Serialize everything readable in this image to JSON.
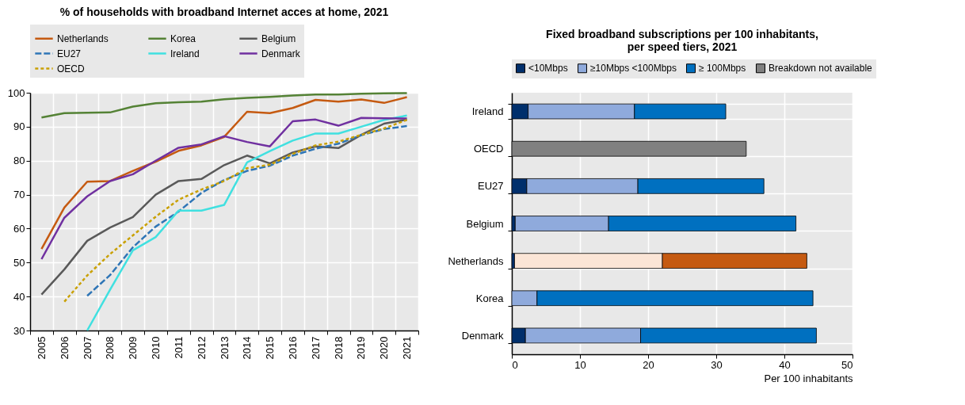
{
  "chart_data": [
    {
      "type": "line",
      "title": "% of households with broadband Internet acces at home, 2021",
      "categories": [
        "2005",
        "2006",
        "2007",
        "2008",
        "2009",
        "2010",
        "2011",
        "2012",
        "2013",
        "2014",
        "2015",
        "2016",
        "2017",
        "2018",
        "2019",
        "2020",
        "2021"
      ],
      "ylim": [
        30,
        100
      ],
      "yticks": [
        30,
        40,
        50,
        60,
        70,
        80,
        90,
        100
      ],
      "grid": true,
      "legend": "top",
      "series": [
        {
          "name": "Netherlands",
          "color": "#c55a11",
          "values": [
            54,
            66.2,
            73.8,
            74,
            77,
            79.7,
            82.9,
            84.5,
            87,
            94.4,
            94,
            95.5,
            97.9,
            97.4,
            98,
            97,
            98.7
          ]
        },
        {
          "name": "Korea",
          "color": "#548235",
          "values": [
            92.7,
            94,
            94.1,
            94.2,
            95.9,
            96.9,
            97.2,
            97.4,
            98.1,
            98.5,
            98.8,
            99.2,
            99.5,
            99.5,
            99.7,
            99.8,
            99.9
          ]
        },
        {
          "name": "Belgium",
          "color": "#595959",
          "values": [
            40.6,
            48,
            56.4,
            60.3,
            63.4,
            70,
            74,
            74.6,
            78.7,
            81.5,
            79.2,
            82.4,
            84.2,
            83.7,
            87.6,
            90.9,
            92.1
          ]
        },
        {
          "name": "EU27",
          "color": "#2e75b6",
          "line_style": "dashed",
          "values": [
            null,
            null,
            40.2,
            46.3,
            54.5,
            60.6,
            65,
            70.5,
            74.3,
            77,
            78.5,
            81.5,
            83.5,
            85,
            87.5,
            89.3,
            90.2
          ]
        },
        {
          "name": "Ireland",
          "color": "#40e0e0",
          "values": [
            null,
            null,
            30,
            42,
            53.6,
            57.5,
            65.3,
            65.3,
            67,
            79.5,
            82.8,
            85.9,
            88,
            88,
            90,
            92,
            93.3
          ]
        },
        {
          "name": "Denmark",
          "color": "#7030a0",
          "values": [
            51,
            63.2,
            69.5,
            74,
            76,
            80,
            83.8,
            84.8,
            87.2,
            85.5,
            84.2,
            91.6,
            92.1,
            90.3,
            92.6,
            92.5,
            92.4
          ]
        },
        {
          "name": "OECD",
          "color": "#c9a000",
          "line_style": "dotted",
          "values": [
            null,
            38.5,
            46.2,
            52.5,
            58,
            63.5,
            68.5,
            71.5,
            74,
            77.8,
            78.8,
            82,
            84.5,
            85.6,
            87.6,
            89.5,
            92
          ]
        }
      ]
    },
    {
      "type": "bar",
      "orientation": "horizontal",
      "stacked": true,
      "title": "Fixed broadband subscriptions per 100 inhabitants,\nper speed tiers, 2021",
      "categories": [
        "Ireland",
        "OECD",
        "EU27",
        "Belgium",
        "Netherlands",
        "Korea",
        "Denmark"
      ],
      "xlim": [
        0,
        50
      ],
      "xticks": [
        0,
        10,
        20,
        30,
        40,
        50
      ],
      "xlabel": "Per 100 inhabitants",
      "grid": true,
      "legend": "top",
      "series": [
        {
          "name": "<10Mbps",
          "color": "#002f6c",
          "values": [
            2.4,
            null,
            2.2,
            0.5,
            0.4,
            null,
            2.0
          ]
        },
        {
          "name": "≥10Mbps <100Mbps",
          "color": "#8faadc",
          "colors": [
            "#8faadc",
            null,
            "#8faadc",
            "#8faadc",
            "#fbe5d6",
            "#8faadc",
            "#8faadc"
          ],
          "values": [
            15.6,
            null,
            16.3,
            13.7,
            21.7,
            3.7,
            16.9
          ]
        },
        {
          "name": "≥ 100Mbps",
          "color": "#0070c0",
          "colors": [
            "#0070c0",
            null,
            "#0070c0",
            "#0070c0",
            "#c55a11",
            "#0070c0",
            "#0070c0"
          ],
          "values": [
            13.4,
            null,
            18.5,
            27.5,
            21.2,
            40.5,
            25.8
          ]
        },
        {
          "name": "Breakdown not available",
          "color": "#808080",
          "values": [
            null,
            34.4,
            null,
            null,
            null,
            null,
            null
          ]
        }
      ]
    }
  ]
}
